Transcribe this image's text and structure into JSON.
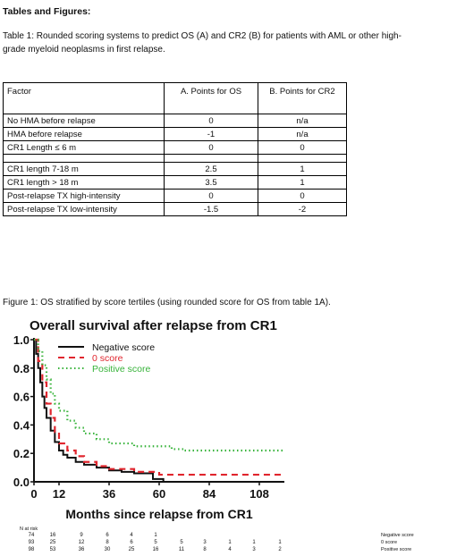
{
  "heading": "Tables and Figures:",
  "table1": {
    "caption_lines": [
      "Table 1: Rounded scoring systems to predict OS (A) and CR2 (B) for patients with AML or other high-",
      "grade myeloid neoplasms in first relapse."
    ],
    "headers": [
      "Factor",
      "A. Points for OS",
      "B. Points for CR2"
    ],
    "rows": [
      [
        "No HMA before relapse",
        "0",
        "n/a"
      ],
      [
        "HMA before relapse",
        "-1",
        "n/a"
      ],
      [
        "CR1 Length ≤ 6 m",
        "0",
        "0"
      ],
      [
        "CR1 length 7-18 m",
        "2.5",
        "1"
      ],
      [
        "CR1 length > 18 m",
        "3.5",
        "1"
      ],
      [
        "Post-relapse TX high-intensity",
        "0",
        "0"
      ],
      [
        "Post-relapse TX low-intensity",
        "-1.5",
        "-2"
      ]
    ]
  },
  "figure1": {
    "caption": "Figure 1: OS stratified by score tertiles (using rounded score for OS from table 1A).",
    "at_risk_label": "N at risk"
  },
  "chart_data": {
    "type": "line",
    "title": "Overall survival after relapse from CR1",
    "xlabel": "Months since relapse from CR1",
    "ylabel": "",
    "xlim": [
      0,
      120
    ],
    "ylim": [
      0,
      1.0
    ],
    "xticks": [
      0,
      12,
      36,
      60,
      84,
      108
    ],
    "yticks": [
      "0.0",
      "0.2",
      "0.4",
      "0.6",
      "0.8",
      "1.0"
    ],
    "legend_position": "top",
    "series": [
      {
        "name": "Negative score",
        "color": "#111111",
        "style": "solid",
        "points": [
          [
            0,
            1.0
          ],
          [
            1,
            0.9
          ],
          [
            2,
            0.8
          ],
          [
            3,
            0.7
          ],
          [
            4,
            0.6
          ],
          [
            5,
            0.52
          ],
          [
            6,
            0.45
          ],
          [
            8,
            0.36
          ],
          [
            10,
            0.28
          ],
          [
            12,
            0.22
          ],
          [
            14,
            0.19
          ],
          [
            16,
            0.17
          ],
          [
            20,
            0.14
          ],
          [
            24,
            0.12
          ],
          [
            30,
            0.1
          ],
          [
            36,
            0.08
          ],
          [
            42,
            0.07
          ],
          [
            48,
            0.06
          ],
          [
            55,
            0.06
          ],
          [
            57,
            0.02
          ],
          [
            62,
            0.02
          ],
          [
            62,
            0.0
          ]
        ]
      },
      {
        "name": "0 score",
        "color": "#e0262e",
        "style": "dashed",
        "points": [
          [
            0,
            1.0
          ],
          [
            2,
            0.85
          ],
          [
            4,
            0.7
          ],
          [
            6,
            0.55
          ],
          [
            8,
            0.45
          ],
          [
            10,
            0.35
          ],
          [
            12,
            0.27
          ],
          [
            16,
            0.22
          ],
          [
            20,
            0.18
          ],
          [
            24,
            0.14
          ],
          [
            30,
            0.11
          ],
          [
            36,
            0.09
          ],
          [
            48,
            0.07
          ],
          [
            60,
            0.05
          ],
          [
            120,
            0.05
          ]
        ]
      },
      {
        "name": "Positive score",
        "color": "#37b33a",
        "style": "dotted",
        "points": [
          [
            0,
            1.0
          ],
          [
            2,
            0.92
          ],
          [
            4,
            0.82
          ],
          [
            6,
            0.72
          ],
          [
            8,
            0.62
          ],
          [
            10,
            0.55
          ],
          [
            12,
            0.5
          ],
          [
            16,
            0.43
          ],
          [
            20,
            0.38
          ],
          [
            24,
            0.34
          ],
          [
            30,
            0.3
          ],
          [
            36,
            0.27
          ],
          [
            48,
            0.25
          ],
          [
            60,
            0.25
          ],
          [
            66,
            0.23
          ],
          [
            72,
            0.22
          ],
          [
            120,
            0.22
          ]
        ]
      }
    ],
    "at_risk": {
      "times": [
        0,
        12,
        24,
        36,
        48,
        60,
        72,
        84,
        96,
        108,
        120
      ],
      "rows": [
        {
          "name": "Negative score",
          "values": [
            "74",
            "16",
            "9",
            "6",
            "4",
            "1"
          ]
        },
        {
          "name": "0 score",
          "values": [
            "93",
            "25",
            "12",
            "8",
            "6",
            "5",
            "5",
            "3",
            "1",
            "1",
            "1"
          ]
        },
        {
          "name": "Positive score",
          "values": [
            "98",
            "53",
            "36",
            "30",
            "25",
            "16",
            "11",
            "8",
            "4",
            "3",
            "2"
          ]
        }
      ]
    }
  }
}
